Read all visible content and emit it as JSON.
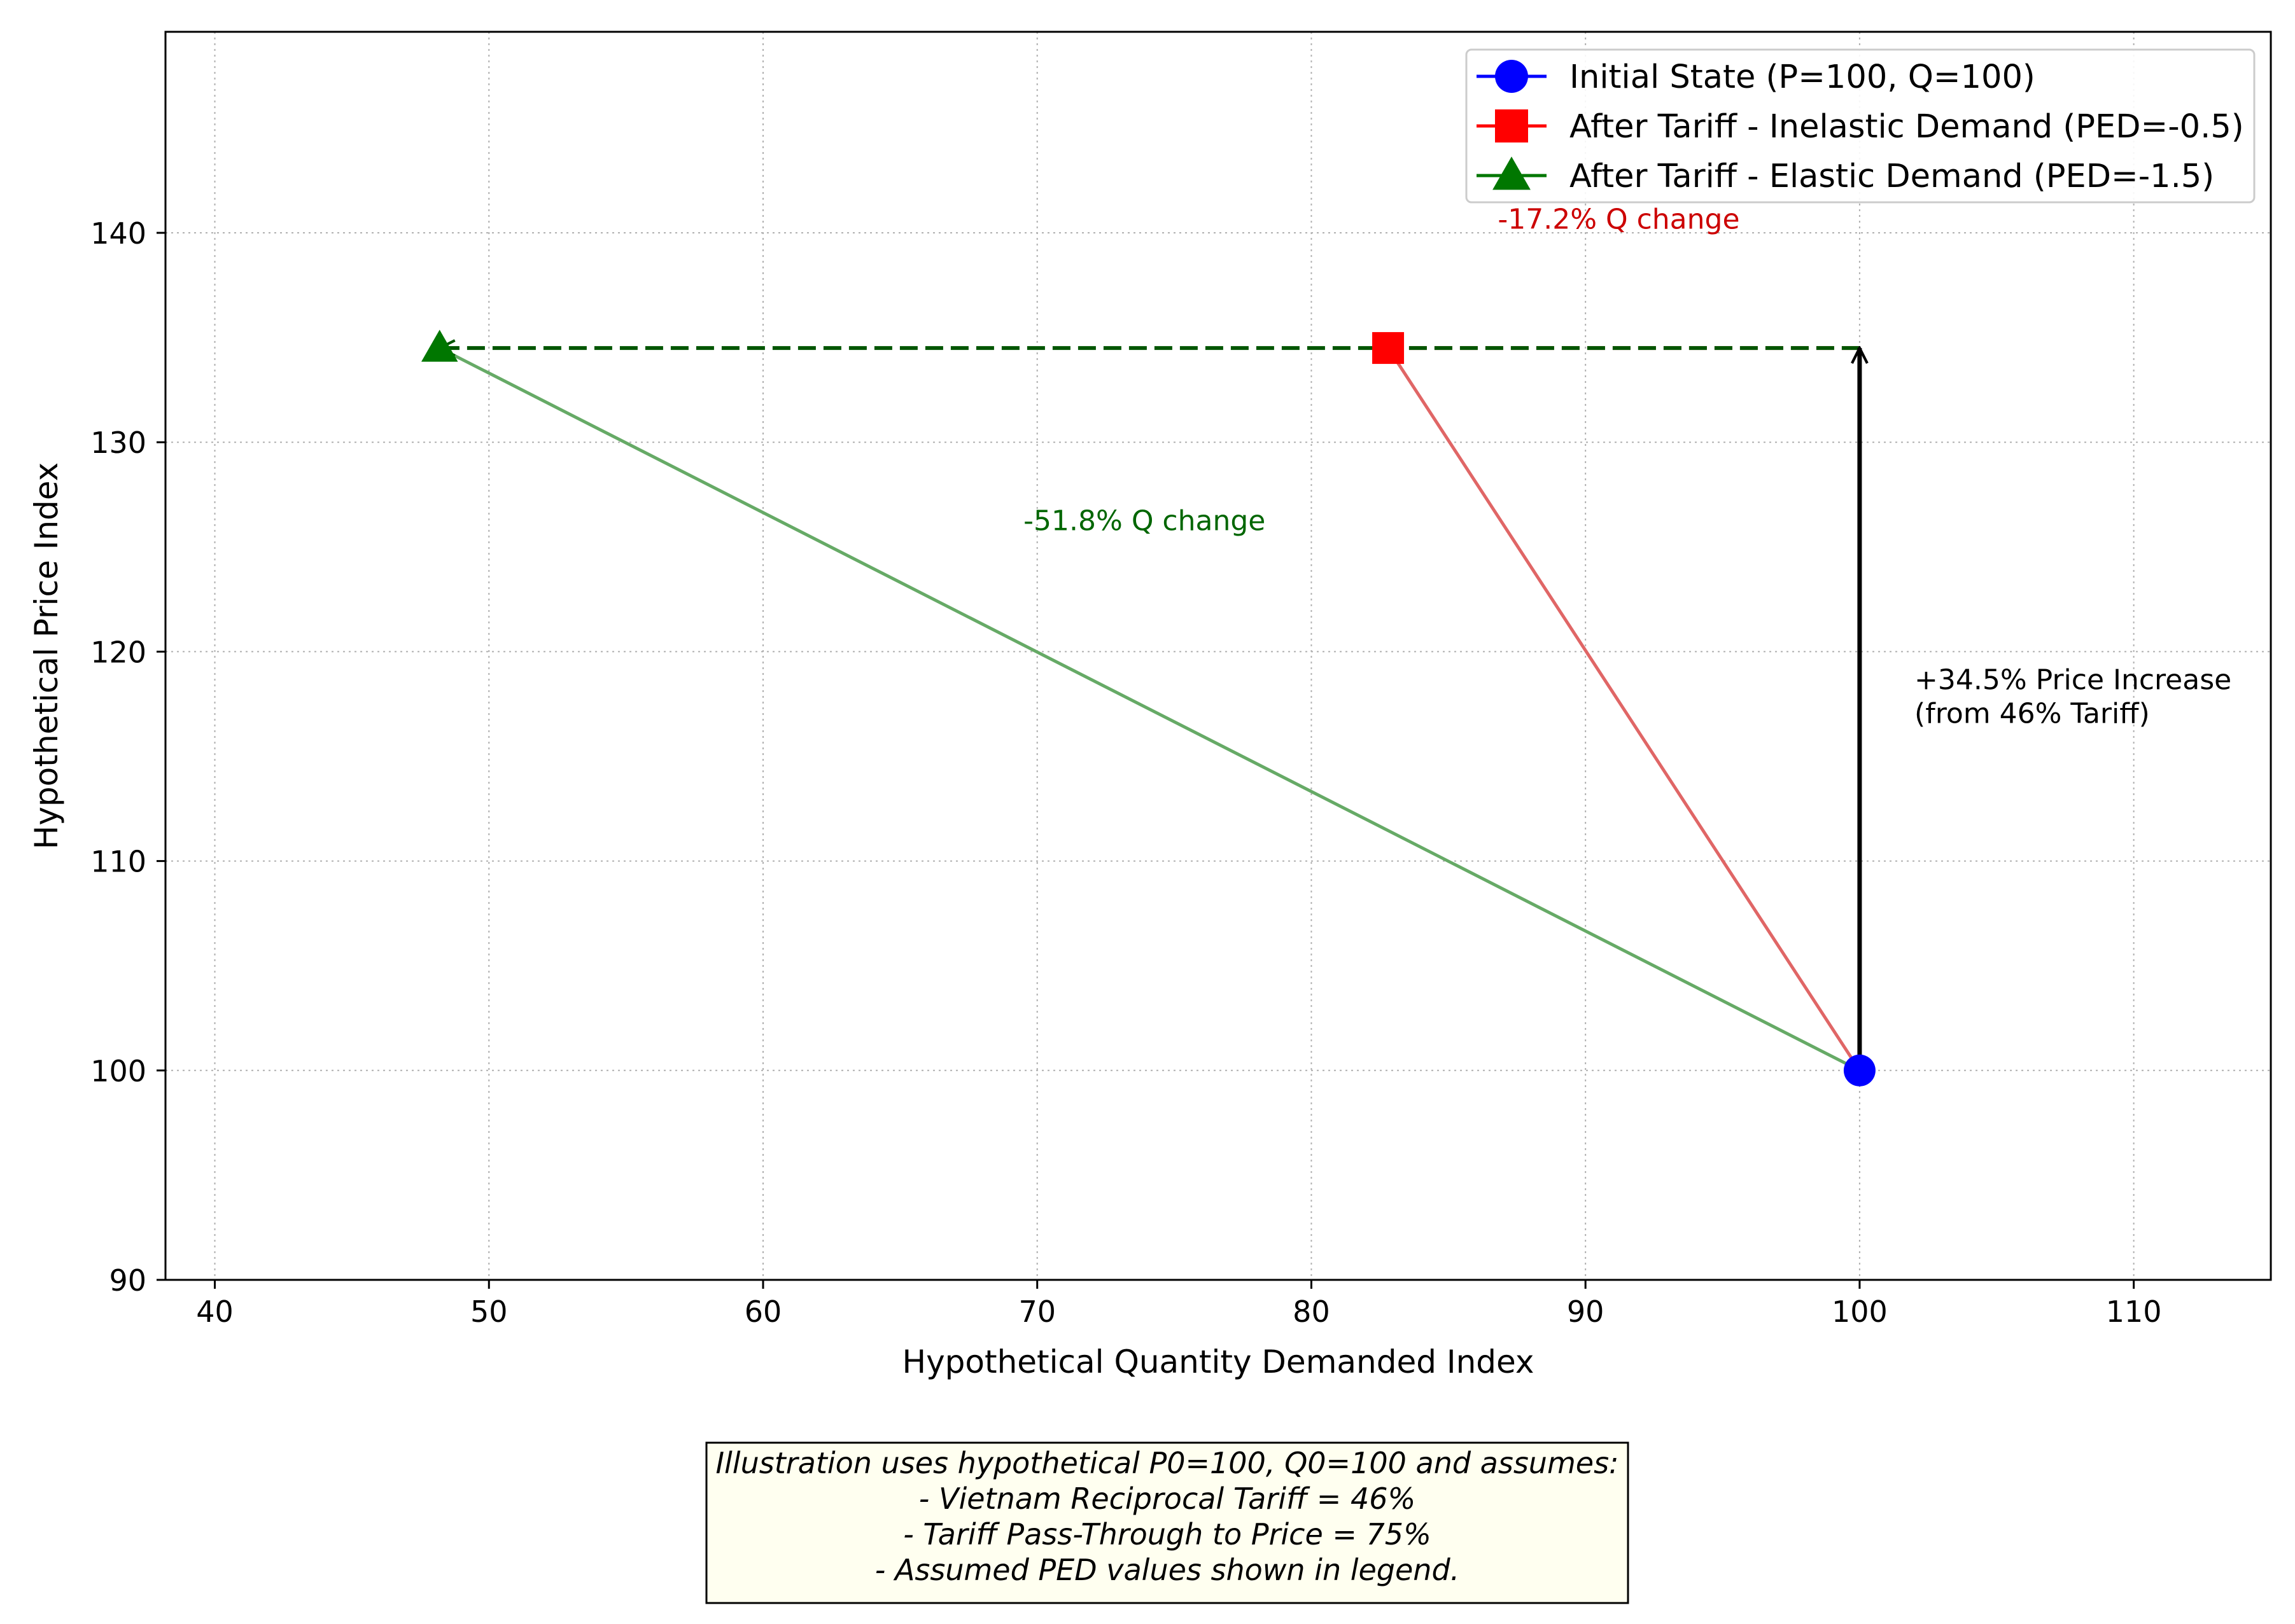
{
  "chart_data": {
    "type": "scatter",
    "title": "",
    "xlabel": "Hypothetical Quantity Demanded Index",
    "ylabel": "Hypothetical Price Index",
    "xlim": [
      38.2,
      115
    ],
    "ylim": [
      90,
      149.6
    ],
    "xticks": [
      40,
      50,
      60,
      70,
      80,
      90,
      100,
      110
    ],
    "yticks": [
      90,
      100,
      110,
      120,
      130,
      140
    ],
    "grid": true,
    "legend_position": "top-right",
    "series": [
      {
        "name": "Initial State (P=100, Q=100)",
        "marker": "circle",
        "color": "#0000ff",
        "x": [
          100.0
        ],
        "y": [
          100.0
        ]
      },
      {
        "name": "After Tariff - Inelastic Demand (PED=-0.5)",
        "marker": "square",
        "color": "#ff0000",
        "x": [
          82.8
        ],
        "y": [
          134.5
        ]
      },
      {
        "name": "After Tariff - Elastic Demand (PED=-1.5)",
        "marker": "triangle",
        "color": "#007700",
        "x": [
          48.2
        ],
        "y": [
          134.5
        ]
      }
    ],
    "lines": [
      {
        "from": [
          100,
          100
        ],
        "to": [
          82.8,
          134.5
        ],
        "color": "#e06666",
        "style": "solid"
      },
      {
        "from": [
          100,
          100
        ],
        "to": [
          48.2,
          134.5
        ],
        "color": "#66aa66",
        "style": "solid"
      },
      {
        "from": [
          100,
          134.5
        ],
        "to": [
          82.8,
          134.5
        ],
        "color": "#e06666",
        "style": "dashed-arrow"
      },
      {
        "from": [
          100,
          134.5
        ],
        "to": [
          48.2,
          134.5
        ],
        "color": "#005500",
        "style": "dashed-arrow"
      },
      {
        "from": [
          100,
          100
        ],
        "to": [
          100,
          134.5
        ],
        "color": "#000000",
        "style": "arrow"
      }
    ],
    "annotations": [
      {
        "text": "-17.2% Q change",
        "x": 86.8,
        "y": 140.2,
        "color": "#cc0000"
      },
      {
        "text": "-51.8% Q change",
        "x": 69.5,
        "y": 125.8,
        "color": "#006600"
      },
      {
        "text": "+34.5% Price Increase",
        "x": 102,
        "y": 118.2,
        "color": "#000000"
      },
      {
        "text": "(from 46% Tariff)",
        "x": 102,
        "y": 116.6,
        "color": "#000000"
      }
    ],
    "note": [
      "Illustration uses hypothetical P0=100, Q0=100 and assumes:",
      "- Vietnam Reciprocal Tariff = 46%",
      "- Tariff Pass-Through to Price = 75%",
      "- Assumed PED values shown in legend."
    ]
  }
}
